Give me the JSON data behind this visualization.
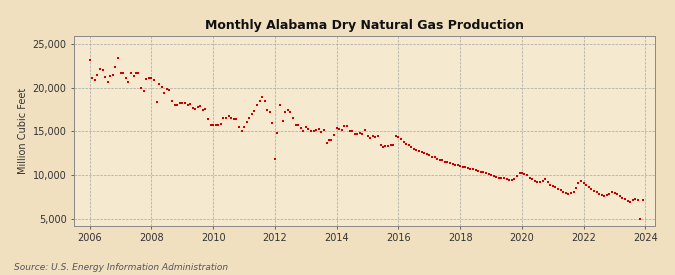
{
  "title": "Monthly Alabama Dry Natural Gas Production",
  "ylabel": "Million Cubic Feet",
  "source": "Source: U.S. Energy Information Administration",
  "bg_color": "#f0e0c0",
  "plot_bg_color": "#f5ead0",
  "dot_color": "#cc0000",
  "dot_size": 4,
  "xlim_left": 2005.5,
  "xlim_right": 2024.3,
  "ylim_bottom": 4200,
  "ylim_top": 26000,
  "yticks": [
    5000,
    10000,
    15000,
    20000,
    25000
  ],
  "xticks": [
    2006,
    2008,
    2010,
    2012,
    2014,
    2016,
    2018,
    2020,
    2022,
    2024
  ],
  "data_x": [
    2006.0,
    2006.08,
    2006.17,
    2006.25,
    2006.33,
    2006.42,
    2006.5,
    2006.58,
    2006.67,
    2006.75,
    2006.83,
    2006.92,
    2007.0,
    2007.08,
    2007.17,
    2007.25,
    2007.33,
    2007.42,
    2007.5,
    2007.58,
    2007.67,
    2007.75,
    2007.83,
    2007.92,
    2008.0,
    2008.08,
    2008.17,
    2008.25,
    2008.33,
    2008.42,
    2008.5,
    2008.58,
    2008.67,
    2008.75,
    2008.83,
    2008.92,
    2009.0,
    2009.08,
    2009.17,
    2009.25,
    2009.33,
    2009.42,
    2009.5,
    2009.58,
    2009.67,
    2009.75,
    2009.83,
    2009.92,
    2010.0,
    2010.08,
    2010.17,
    2010.25,
    2010.33,
    2010.42,
    2010.5,
    2010.58,
    2010.67,
    2010.75,
    2010.83,
    2010.92,
    2011.0,
    2011.08,
    2011.17,
    2011.25,
    2011.33,
    2011.42,
    2011.5,
    2011.58,
    2011.67,
    2011.75,
    2011.83,
    2011.92,
    2012.0,
    2012.08,
    2012.17,
    2012.25,
    2012.33,
    2012.42,
    2012.5,
    2012.58,
    2012.67,
    2012.75,
    2012.83,
    2012.92,
    2013.0,
    2013.08,
    2013.17,
    2013.25,
    2013.33,
    2013.42,
    2013.5,
    2013.58,
    2013.67,
    2013.75,
    2013.83,
    2013.92,
    2014.0,
    2014.08,
    2014.17,
    2014.25,
    2014.33,
    2014.42,
    2014.5,
    2014.58,
    2014.67,
    2014.75,
    2014.83,
    2014.92,
    2015.0,
    2015.08,
    2015.17,
    2015.25,
    2015.33,
    2015.42,
    2015.5,
    2015.58,
    2015.67,
    2015.75,
    2015.83,
    2015.92,
    2016.0,
    2016.08,
    2016.17,
    2016.25,
    2016.33,
    2016.42,
    2016.5,
    2016.58,
    2016.67,
    2016.75,
    2016.83,
    2016.92,
    2017.0,
    2017.08,
    2017.17,
    2017.25,
    2017.33,
    2017.42,
    2017.5,
    2017.58,
    2017.67,
    2017.75,
    2017.83,
    2017.92,
    2018.0,
    2018.08,
    2018.17,
    2018.25,
    2018.33,
    2018.42,
    2018.5,
    2018.58,
    2018.67,
    2018.75,
    2018.83,
    2018.92,
    2019.0,
    2019.08,
    2019.17,
    2019.25,
    2019.33,
    2019.42,
    2019.5,
    2019.58,
    2019.67,
    2019.75,
    2019.83,
    2019.92,
    2020.0,
    2020.08,
    2020.17,
    2020.25,
    2020.33,
    2020.42,
    2020.5,
    2020.58,
    2020.67,
    2020.75,
    2020.83,
    2020.92,
    2021.0,
    2021.08,
    2021.17,
    2021.25,
    2021.33,
    2021.42,
    2021.5,
    2021.58,
    2021.67,
    2021.75,
    2021.83,
    2021.92,
    2022.0,
    2022.08,
    2022.17,
    2022.25,
    2022.33,
    2022.42,
    2022.5,
    2022.58,
    2022.67,
    2022.75,
    2022.83,
    2022.92,
    2023.0,
    2023.08,
    2023.17,
    2023.25,
    2023.33,
    2023.42,
    2023.5,
    2023.58,
    2023.67,
    2023.75,
    2023.83,
    2023.92
  ],
  "data_y": [
    23200,
    21100,
    20900,
    21500,
    22200,
    22100,
    21300,
    20700,
    21400,
    21500,
    22400,
    23500,
    21700,
    21700,
    21100,
    20700,
    21700,
    21400,
    21700,
    21700,
    20000,
    19600,
    21000,
    21200,
    21200,
    20900,
    18400,
    20400,
    20100,
    19400,
    19900,
    19800,
    18500,
    18100,
    18100,
    18300,
    18300,
    18300,
    18100,
    18200,
    17700,
    17600,
    17800,
    17900,
    17500,
    17600,
    16400,
    15800,
    15800,
    15800,
    15700,
    15900,
    16600,
    16500,
    16800,
    16600,
    16400,
    16400,
    15500,
    15000,
    15500,
    16100,
    16500,
    17000,
    17300,
    18000,
    18500,
    19000,
    18500,
    17500,
    17200,
    16000,
    11800,
    14800,
    18000,
    16200,
    17200,
    17500,
    17200,
    16500,
    15700,
    15700,
    15400,
    15100,
    15500,
    15300,
    15000,
    15000,
    15200,
    15300,
    14900,
    15200,
    13700,
    14000,
    14000,
    14600,
    15400,
    15300,
    15200,
    15600,
    15600,
    15100,
    15000,
    14700,
    14700,
    14800,
    14700,
    15200,
    14500,
    14300,
    14500,
    14400,
    14500,
    13500,
    13200,
    13300,
    13300,
    13400,
    13400,
    14500,
    14400,
    14100,
    13800,
    13600,
    13400,
    13200,
    13000,
    12900,
    12800,
    12700,
    12500,
    12400,
    12300,
    12100,
    12100,
    11800,
    11700,
    11700,
    11500,
    11500,
    11400,
    11300,
    11200,
    11100,
    11000,
    10900,
    10900,
    10800,
    10700,
    10700,
    10600,
    10500,
    10400,
    10300,
    10200,
    10100,
    10000,
    9900,
    9800,
    9700,
    9600,
    9600,
    9500,
    9400,
    9400,
    9500,
    9900,
    10200,
    10200,
    10100,
    10000,
    9700,
    9500,
    9300,
    9200,
    9200,
    9300,
    9500,
    9200,
    8900,
    8700,
    8600,
    8400,
    8300,
    8100,
    7900,
    7800,
    7900,
    8100,
    8500,
    9100,
    9300,
    9100,
    8800,
    8600,
    8400,
    8200,
    8000,
    7800,
    7700,
    7600,
    7700,
    7800,
    8000,
    7900,
    7800,
    7600,
    7400,
    7200,
    7000,
    6900,
    7100,
    7200,
    7100,
    4900,
    7100
  ]
}
